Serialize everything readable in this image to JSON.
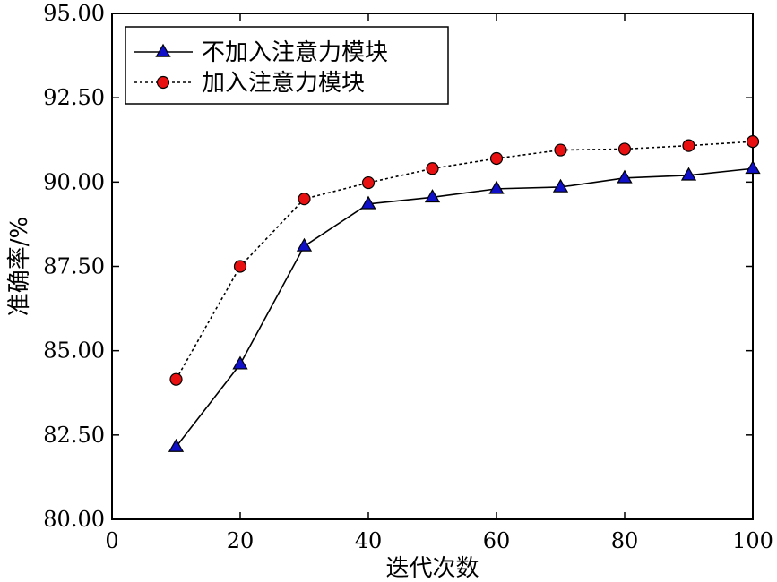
{
  "chart_data": {
    "type": "line",
    "title": "",
    "xlabel": "迭代次数",
    "ylabel": "准确率/%",
    "xlim": [
      0,
      100
    ],
    "ylim": [
      80.0,
      95.0
    ],
    "xticks": [
      0,
      20,
      40,
      60,
      80,
      100
    ],
    "xtick_labels": [
      "0",
      "20",
      "40",
      "60",
      "80",
      "100"
    ],
    "yticks": [
      80.0,
      82.5,
      85.0,
      87.5,
      90.0,
      92.5,
      95.0
    ],
    "ytick_labels": [
      "80.00",
      "82.50",
      "85.00",
      "87.50",
      "90.00",
      "92.50",
      "95.00"
    ],
    "grid": false,
    "legend_position": "top-left",
    "x": [
      10,
      20,
      30,
      40,
      50,
      60,
      70,
      80,
      90,
      100
    ],
    "series": [
      {
        "name": "不加入注意力模块",
        "marker": "triangle",
        "line_style": "solid",
        "marker_color": "#1010c8",
        "values": [
          82.15,
          84.6,
          88.1,
          89.35,
          89.55,
          89.8,
          89.85,
          90.12,
          90.2,
          90.4
        ]
      },
      {
        "name": "加入注意力模块",
        "marker": "circle",
        "line_style": "dotted",
        "marker_color": "#e81010",
        "values": [
          84.15,
          87.5,
          89.5,
          89.98,
          90.4,
          90.7,
          90.95,
          90.98,
          91.08,
          91.2
        ]
      }
    ]
  }
}
